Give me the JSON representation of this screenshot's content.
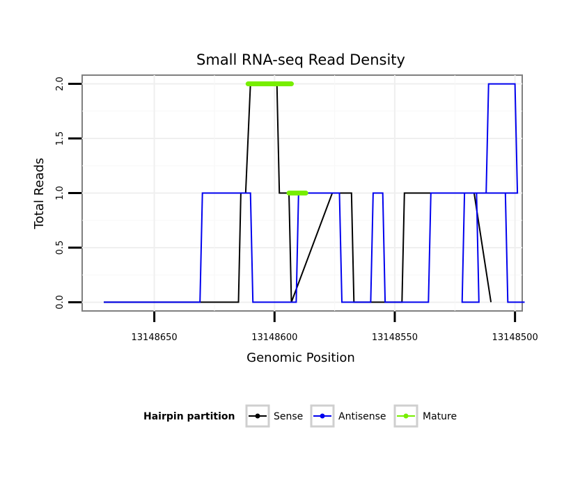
{
  "chart_data": {
    "type": "line",
    "title": "Small RNA-seq Read Density",
    "xlabel": "Genomic Position",
    "ylabel": "Total Reads",
    "x_reversed": true,
    "xlim": [
      13148680,
      13148497
    ],
    "ylim": [
      -0.08,
      2.08
    ],
    "xticks": [
      13148650,
      13148600,
      13148550,
      13148500
    ],
    "xtick_labels": [
      "13148650",
      "13148600",
      "13148550",
      "13148500"
    ],
    "yticks": [
      0,
      0.5,
      1,
      1.5,
      2
    ],
    "ytick_labels": [
      "0.0",
      "0.5",
      "1.0",
      "1.5",
      "2.0"
    ],
    "grid": true,
    "legend": {
      "title": "Hairpin partition",
      "position": "bottom",
      "entries": [
        {
          "name": "Sense",
          "color": "#000000"
        },
        {
          "name": "Antisense",
          "color": "#0000ee"
        },
        {
          "name": "Mature",
          "color": "#77ee00"
        }
      ]
    },
    "series": [
      {
        "name": "Sense",
        "color": "#000000",
        "x": [
          13148671,
          13148615,
          13148614,
          13148612,
          13148610,
          13148599,
          13148598,
          13148594,
          13148593,
          13148576,
          13148575,
          13148568,
          13148567,
          13148547,
          13148546,
          13148542,
          13148541,
          13148518,
          13148517,
          13148510
        ],
        "y": [
          0,
          0,
          1,
          1,
          2,
          2,
          1,
          1,
          0,
          1,
          1,
          1,
          0,
          0,
          1,
          1,
          1,
          1,
          1,
          0
        ]
      },
      {
        "name": "Antisense",
        "color": "#0000ee",
        "x": [
          13148671,
          13148631,
          13148630,
          13148610,
          13148609,
          13148591,
          13148590,
          13148573,
          13148572,
          13148560,
          13148559,
          13148555,
          13148554,
          13148536,
          13148535,
          13148516,
          13148515,
          13148522,
          13148521,
          13148512,
          13148511,
          13148500,
          13148499,
          13148517,
          13148516,
          13148504,
          13148503,
          13148496
        ],
        "y": [
          0,
          0,
          1,
          1,
          0,
          0,
          1,
          1,
          0,
          0,
          1,
          1,
          0,
          0,
          1,
          1,
          0,
          0,
          1,
          1,
          2,
          2,
          1,
          1,
          1,
          1,
          0,
          0
        ]
      }
    ],
    "mature_segments": [
      {
        "x": [
          13148611,
          13148593
        ],
        "y": [
          2,
          2
        ]
      },
      {
        "x": [
          13148594,
          13148587
        ],
        "y": [
          1,
          1
        ]
      }
    ]
  }
}
